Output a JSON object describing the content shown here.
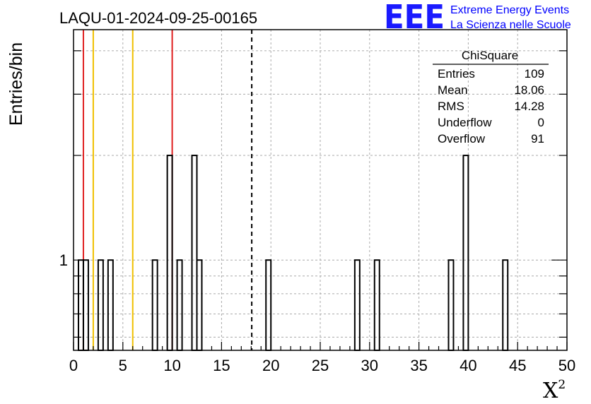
{
  "chart_data": {
    "type": "bar",
    "title": "LAQU-01-2024-09-25-00165",
    "xlabel": "X",
    "xlabel_sup": "2",
    "ylabel": "Entries/bin",
    "xlim": [
      0,
      50
    ],
    "x_ticks": [
      "0",
      "5",
      "10",
      "15",
      "20",
      "25",
      "30",
      "35",
      "40",
      "45",
      "50"
    ],
    "y_scale": "log",
    "ylim": [
      0.55,
      4.6
    ],
    "y_tick_labels": [
      {
        "value": 1,
        "label": "1"
      }
    ],
    "grid": true,
    "bin_width": 0.5,
    "bins": [
      {
        "x": 0.5,
        "y": 1
      },
      {
        "x": 1.0,
        "y": 1
      },
      {
        "x": 2.5,
        "y": 1
      },
      {
        "x": 3.5,
        "y": 1
      },
      {
        "x": 8.0,
        "y": 1
      },
      {
        "x": 9.5,
        "y": 2
      },
      {
        "x": 10.5,
        "y": 1
      },
      {
        "x": 12.0,
        "y": 2
      },
      {
        "x": 12.5,
        "y": 1
      },
      {
        "x": 19.5,
        "y": 1
      },
      {
        "x": 28.5,
        "y": 1
      },
      {
        "x": 30.5,
        "y": 1
      },
      {
        "x": 38.0,
        "y": 1
      },
      {
        "x": 39.5,
        "y": 2
      },
      {
        "x": 43.5,
        "y": 1
      }
    ],
    "vertical_lines": [
      {
        "x": 1,
        "color": "#e02020",
        "style": "solid"
      },
      {
        "x": 2,
        "color": "#f0c000",
        "style": "solid"
      },
      {
        "x": 6,
        "color": "#f0c000",
        "style": "solid"
      },
      {
        "x": 10,
        "color": "#e02020",
        "style": "solid"
      },
      {
        "x": 18.06,
        "color": "#000000",
        "style": "dashed"
      }
    ],
    "stats_box": {
      "title": "ChiSquare",
      "rows": [
        {
          "label": "Entries",
          "value": "109"
        },
        {
          "label": "Mean",
          "value": "18.06"
        },
        {
          "label": "RMS",
          "value": "14.28"
        },
        {
          "label": "Underflow",
          "value": "0"
        },
        {
          "label": "Overflow",
          "value": "91"
        }
      ]
    }
  },
  "logo": {
    "text": "EEE",
    "line1": "Extreme Energy Events",
    "line2": "La Scienza nelle Scuole",
    "color": "#1a1aff"
  }
}
